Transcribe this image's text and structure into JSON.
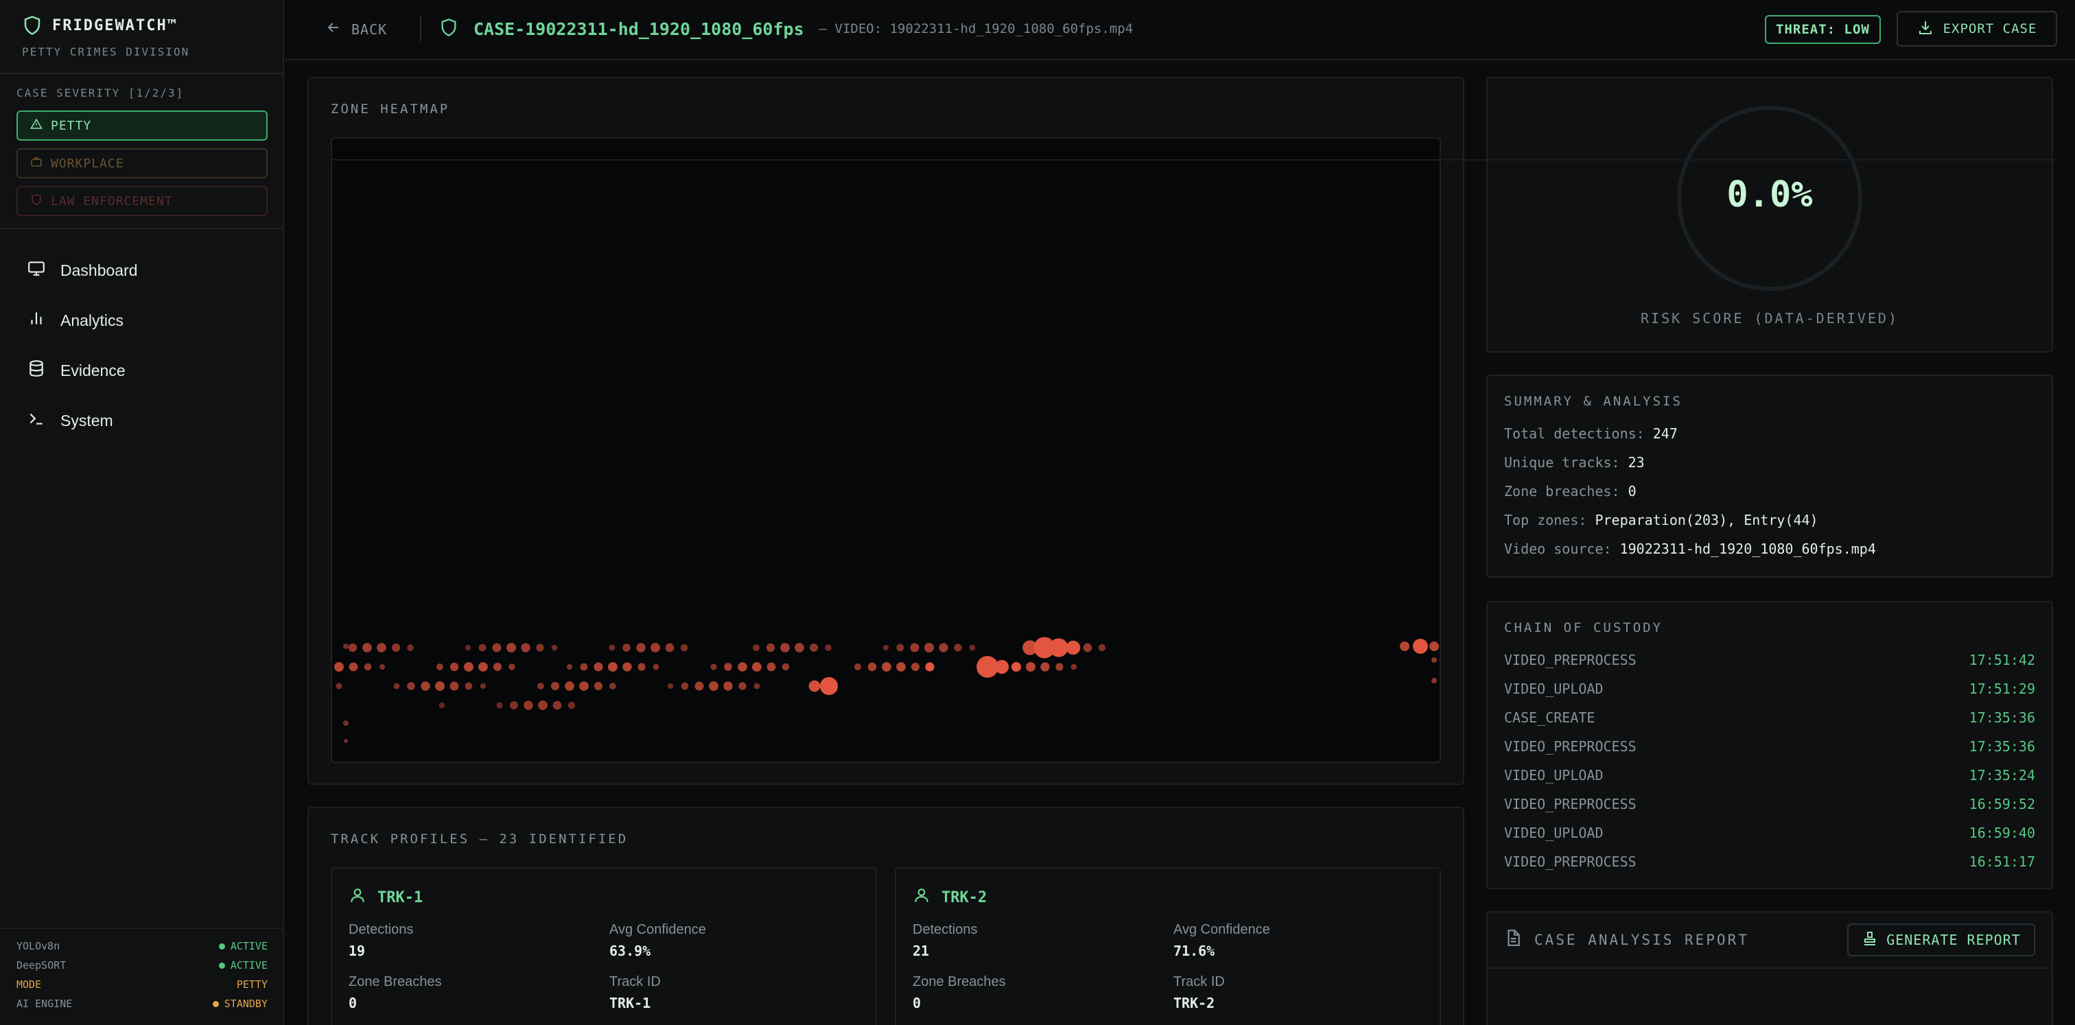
{
  "brand": {
    "title": "FRIDGEWATCH™",
    "subtitle": "PETTY CRIMES DIVISION"
  },
  "severity": {
    "title": "CASE SEVERITY [1/2/3]",
    "options": [
      {
        "label": "PETTY",
        "icon": "warning-triangle-icon",
        "state": "active"
      },
      {
        "label": "WORKPLACE",
        "icon": "briefcase-icon",
        "state": "inactive"
      },
      {
        "label": "LAW ENFORCEMENT",
        "icon": "shield-icon",
        "state": "disabled"
      }
    ]
  },
  "nav": [
    {
      "label": "Dashboard",
      "icon": "monitor-icon"
    },
    {
      "label": "Analytics",
      "icon": "bar-chart-icon"
    },
    {
      "label": "Evidence",
      "icon": "database-icon"
    },
    {
      "label": "System",
      "icon": "terminal-icon"
    }
  ],
  "system_status": [
    {
      "key": "YOLOv8n",
      "value": "ACTIVE"
    },
    {
      "key": "DeepSORT",
      "value": "ACTIVE"
    },
    {
      "key": "MODE",
      "value": "PETTY"
    },
    {
      "key": "AI ENGINE",
      "value": "STANDBY"
    }
  ],
  "header": {
    "back_label": "BACK",
    "case_title": "CASE-19022311-hd_1920_1080_60fps",
    "video_label": "— VIDEO: 19022311-hd_1920_1080_60fps.mp4",
    "threat_label": "THREAT: LOW",
    "export_label": "EXPORT CASE"
  },
  "heatmap": {
    "title": "ZONE HEATMAP",
    "accent_color": "#e2553f"
  },
  "risk": {
    "value": "0.0%",
    "label": "RISK SCORE (DATA-DERIVED)"
  },
  "summary": {
    "title": "SUMMARY & ANALYSIS",
    "rows": [
      {
        "key": "Total detections:",
        "value": "247"
      },
      {
        "key": "Unique tracks:",
        "value": "23"
      },
      {
        "key": "Zone breaches:",
        "value": "0"
      },
      {
        "key": "Top zones:",
        "value": "Preparation(203), Entry(44)"
      },
      {
        "key": "Video source:",
        "value": "19022311-hd_1920_1080_60fps.mp4"
      }
    ]
  },
  "custody": {
    "title": "CHAIN OF CUSTODY",
    "events": [
      {
        "event": "VIDEO_PREPROCESS",
        "time": "17:51:42"
      },
      {
        "event": "VIDEO_UPLOAD",
        "time": "17:51:29"
      },
      {
        "event": "CASE_CREATE",
        "time": "17:35:36"
      },
      {
        "event": "VIDEO_PREPROCESS",
        "time": "17:35:36"
      },
      {
        "event": "VIDEO_UPLOAD",
        "time": "17:35:24"
      },
      {
        "event": "VIDEO_PREPROCESS",
        "time": "16:59:52"
      },
      {
        "event": "VIDEO_UPLOAD",
        "time": "16:59:40"
      },
      {
        "event": "VIDEO_PREPROCESS",
        "time": "16:51:17"
      }
    ]
  },
  "report": {
    "title": "CASE ANALYSIS REPORT",
    "button_label": "GENERATE REPORT"
  },
  "tracks": {
    "title": "TRACK PROFILES — 23 IDENTIFIED",
    "labels": {
      "detections": "Detections",
      "avg_conf": "Avg Confidence",
      "breaches": "Zone Breaches",
      "track_id": "Track ID"
    },
    "items": [
      {
        "name": "TRK-1",
        "detections": "19",
        "avg_conf": "63.9%",
        "breaches": "0",
        "track_id": "TRK-1"
      },
      {
        "name": "TRK-2",
        "detections": "21",
        "avg_conf": "71.6%",
        "breaches": "0",
        "track_id": "TRK-2"
      }
    ]
  }
}
